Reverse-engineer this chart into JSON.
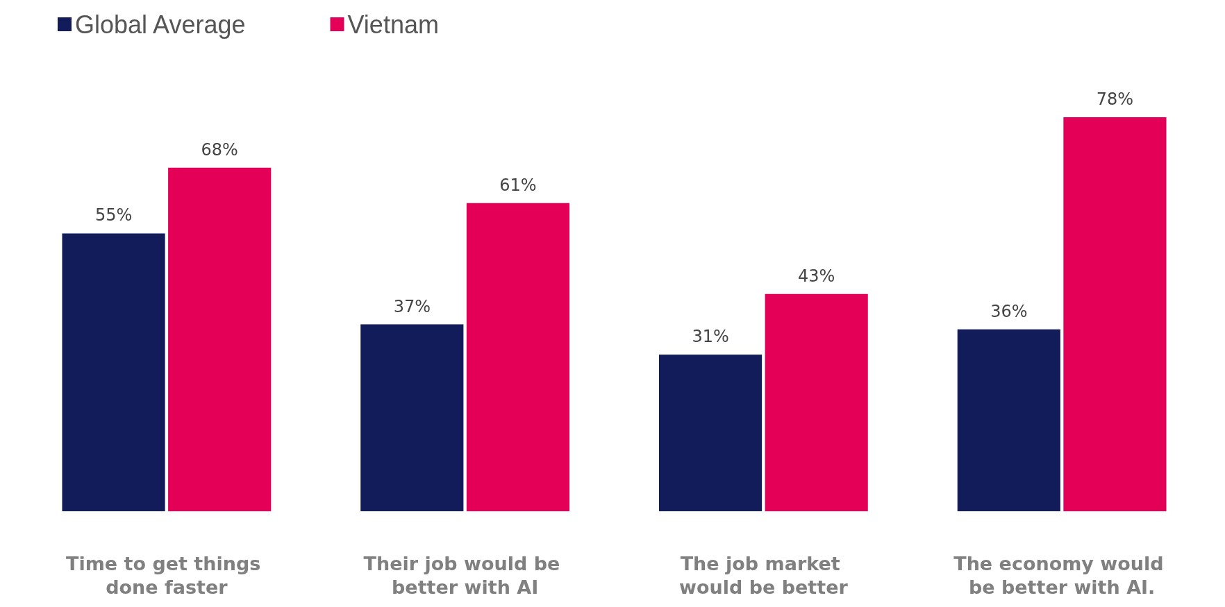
{
  "chart_data": {
    "type": "bar",
    "categories": [
      "Time to get things done faster",
      "Their job would be better with AI",
      "The job market would be better",
      "The economy would be better with AI."
    ],
    "series": [
      {
        "name": "Global Average",
        "color": "#131c5a",
        "values": [
          55,
          37,
          31,
          36
        ],
        "value_labels": [
          "55%",
          "37%",
          "31%",
          "36%"
        ]
      },
      {
        "name": "Vietnam",
        "color": "#e50057",
        "values": [
          68,
          61,
          43,
          78
        ],
        "value_labels": [
          "68%",
          "61%",
          "43%",
          "78%"
        ]
      }
    ],
    "legend": "top left"
  }
}
